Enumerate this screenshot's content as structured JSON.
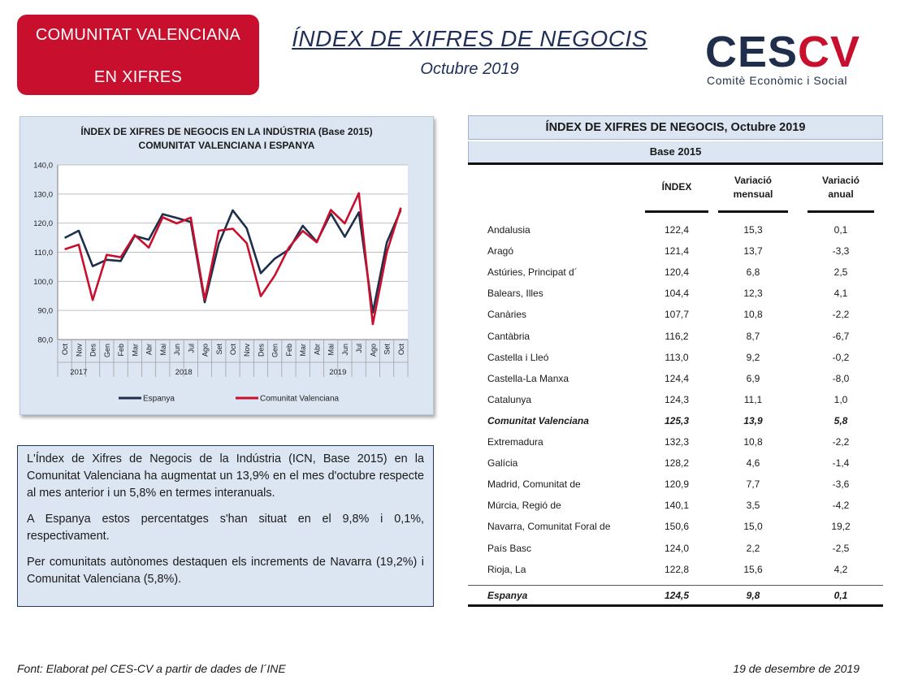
{
  "header": {
    "badge_line1": "COMUNITAT VALENCIANA",
    "badge_line2": "EN XIFRES",
    "title": "ÍNDEX DE XIFRES DE NEGOCIS",
    "subtitle": "Octubre 2019",
    "logo": {
      "ces": "CES",
      "cv": "CV",
      "tagline": "Comitè Econòmic i Social"
    }
  },
  "chart_data": {
    "type": "line",
    "title_line1": "ÍNDEX DE XIFRES DE NEGOCIS  EN LA INDÚSTRIA (Base 2015)",
    "title_line2": "COMUNITAT  VALENCIANA  I ESPANYA",
    "categories": [
      "Oct",
      "Nov",
      "Des",
      "Gen",
      "Feb",
      "Mar",
      "Abr",
      "Mai",
      "Jun",
      "Jul",
      "Ago",
      "Set",
      "Oct",
      "Nov",
      "Des",
      "Gen",
      "Feb",
      "Mar",
      "Abr",
      "Mai",
      "Jun",
      "Jul",
      "Ago",
      "Set",
      "Oct"
    ],
    "year_groups": [
      {
        "label": "2017",
        "start": 0,
        "end": 2
      },
      {
        "label": "2018",
        "start": 3,
        "end": 14
      },
      {
        "label": "2019",
        "start": 15,
        "end": 24
      }
    ],
    "yticks": [
      "80,0",
      "90,0",
      "100,0",
      "110,0",
      "120,0",
      "130,0",
      "140,0"
    ],
    "ylim": [
      80,
      140
    ],
    "grid": true,
    "legend_position": "bottom",
    "series": [
      {
        "name": "Espanya",
        "color": "#1f2e4a",
        "values": [
          114.9,
          117.4,
          105.2,
          107.4,
          107.0,
          115.6,
          114.3,
          123.1,
          121.8,
          120.4,
          92.8,
          112.9,
          124.4,
          118.2,
          102.8,
          107.8,
          110.9,
          119.1,
          113.6,
          123.3,
          115.3,
          123.7,
          89.3,
          113.3,
          124.5
        ]
      },
      {
        "name": "Comunitat Valenciana",
        "color": "#c8102e",
        "values": [
          111.0,
          112.6,
          93.6,
          109.1,
          108.3,
          115.9,
          111.6,
          122.0,
          119.9,
          121.9,
          93.7,
          117.4,
          118.1,
          113.1,
          94.9,
          102.0,
          111.6,
          117.3,
          113.4,
          124.5,
          119.9,
          130.3,
          85.3,
          110.0,
          125.3
        ]
      }
    ]
  },
  "text_box": {
    "p1": "L'Índex de Xifres de Negocis de la Indústria (ICN, Base 2015) en la Comunitat Valenciana ha augmentat un 13,9% en el mes d'octubre respecte al mes anterior i un 5,8% en termes interanuals.",
    "p2": "A Espanya estos percentatges s'han situat en el 9,8% i 0,1%, respectivament.",
    "p3": "Per comunitats autònomes destaquen els increments de Navarra (19,2%) i Comunitat Valenciana (5,8%)."
  },
  "table": {
    "title": "ÍNDEX DE XIFRES DE NEGOCIS, Octubre 2019",
    "base": "Base 2015",
    "col_index": "ÍNDEX",
    "col_monthly_1": "Variació",
    "col_monthly_2": "mensual",
    "col_annual_1": "Variació",
    "col_annual_2": "anual",
    "rows": [
      {
        "name": "Andalusia",
        "index": "122,4",
        "monthly": "15,3",
        "annual": "0,1"
      },
      {
        "name": "Aragó",
        "index": "121,4",
        "monthly": "13,7",
        "annual": "-3,3"
      },
      {
        "name": "Astúries, Principat d´",
        "index": "120,4",
        "monthly": "6,8",
        "annual": "2,5"
      },
      {
        "name": "Balears, Illes",
        "index": "104,4",
        "monthly": "12,3",
        "annual": "4,1"
      },
      {
        "name": "Canàries",
        "index": "107,7",
        "monthly": "10,8",
        "annual": "-2,2"
      },
      {
        "name": "Cantàbria",
        "index": "116,2",
        "monthly": "8,7",
        "annual": "-6,7"
      },
      {
        "name": "Castella i Lleó",
        "index": "113,0",
        "monthly": "9,2",
        "annual": "-0,2"
      },
      {
        "name": "Castella-La Manxa",
        "index": "124,4",
        "monthly": "6,9",
        "annual": "-8,0"
      },
      {
        "name": "Catalunya",
        "index": "124,3",
        "monthly": "11,1",
        "annual": "1,0"
      },
      {
        "name": "Comunitat Valenciana",
        "index": "125,3",
        "monthly": "13,9",
        "annual": "5,8",
        "highlight": true
      },
      {
        "name": "Extremadura",
        "index": "132,3",
        "monthly": "10,8",
        "annual": "-2,2"
      },
      {
        "name": "Galícia",
        "index": "128,2",
        "monthly": "4,6",
        "annual": "-1,4"
      },
      {
        "name": "Madrid, Comunitat de",
        "index": "120,9",
        "monthly": "7,7",
        "annual": "-3,6"
      },
      {
        "name": "Múrcia, Regió de",
        "index": "140,1",
        "monthly": "3,5",
        "annual": "-4,2"
      },
      {
        "name": "Navarra, Comunitat Foral de",
        "index": "150,6",
        "monthly": "15,0",
        "annual": "19,2"
      },
      {
        "name": "País Basc",
        "index": "124,0",
        "monthly": "2,2",
        "annual": "-2,5"
      },
      {
        "name": "Rioja, La",
        "index": "122,8",
        "monthly": "15,6",
        "annual": "4,2"
      }
    ],
    "total": {
      "name": "Espanya",
      "index": "124,5",
      "monthly": "9,8",
      "annual": "0,1"
    }
  },
  "footer": {
    "source": "Font: Elaborat pel CES-CV a partir de dades de l´INE",
    "date": "19 de desembre de 2019"
  }
}
